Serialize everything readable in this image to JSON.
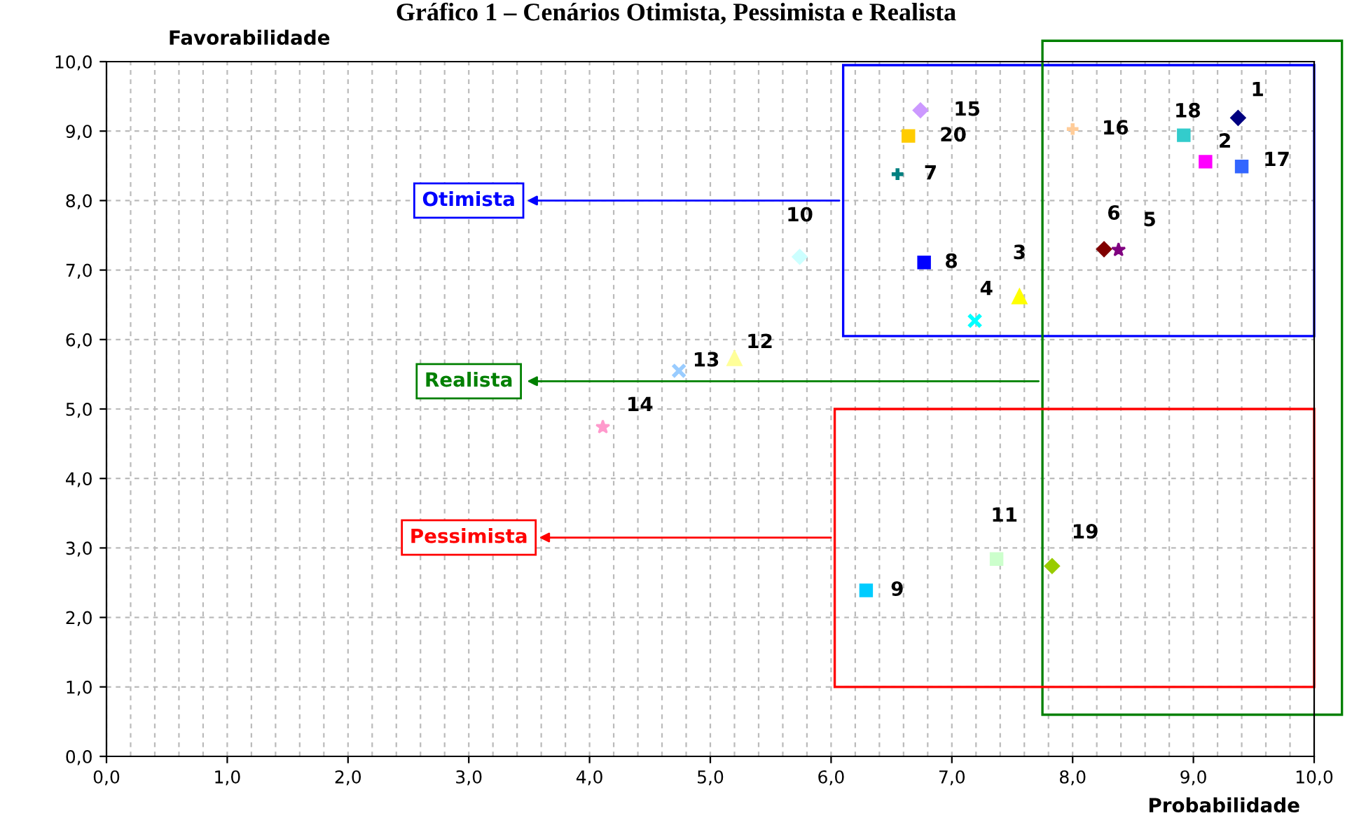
{
  "chart_data": {
    "type": "scatter",
    "title": "Gráfico 1 – Cenários Otimista, Pessimista e Realista",
    "xlabel": "Probabilidade",
    "ylabel": "Favorabilidade",
    "xlim": [
      0,
      10
    ],
    "ylim": [
      0,
      10
    ],
    "xticks": [
      {
        "value": 0,
        "label": "0,0"
      },
      {
        "value": 1,
        "label": "1,0"
      },
      {
        "value": 2,
        "label": "2,0"
      },
      {
        "value": 3,
        "label": "3,0"
      },
      {
        "value": 4,
        "label": "4,0"
      },
      {
        "value": 5,
        "label": "5,0"
      },
      {
        "value": 6,
        "label": "6,0"
      },
      {
        "value": 7,
        "label": "7,0"
      },
      {
        "value": 8,
        "label": "8,0"
      },
      {
        "value": 9,
        "label": "9,0"
      },
      {
        "value": 10,
        "label": "10,0"
      }
    ],
    "yticks": [
      {
        "value": 0,
        "label": "0,0"
      },
      {
        "value": 1,
        "label": "1,0"
      },
      {
        "value": 2,
        "label": "2,0"
      },
      {
        "value": 3,
        "label": "3,0"
      },
      {
        "value": 4,
        "label": "4,0"
      },
      {
        "value": 5,
        "label": "5,0"
      },
      {
        "value": 6,
        "label": "6,0"
      },
      {
        "value": 7,
        "label": "7,0"
      },
      {
        "value": 8,
        "label": "8,0"
      },
      {
        "value": 9,
        "label": "9,0"
      },
      {
        "value": 10,
        "label": "10,0"
      }
    ],
    "grid": true,
    "legend": false,
    "series": [
      {
        "name": "1",
        "color": "#000080",
        "marker": "diamond",
        "x": [
          9.37
        ],
        "values": [
          9.19
        ]
      },
      {
        "name": "2",
        "color": "#ff00ff",
        "marker": "square",
        "x": [
          9.1
        ],
        "values": [
          8.56
        ]
      },
      {
        "name": "3",
        "color": "#ffff00",
        "marker": "triangle",
        "x": [
          7.56
        ],
        "values": [
          6.62
        ]
      },
      {
        "name": "4",
        "color": "#00ffff",
        "marker": "cross",
        "x": [
          7.19
        ],
        "values": [
          6.27
        ]
      },
      {
        "name": "5",
        "color": "#800080",
        "marker": "star",
        "x": [
          8.38
        ],
        "values": [
          7.29
        ]
      },
      {
        "name": "6",
        "color": "#800000",
        "marker": "diamond",
        "x": [
          8.26
        ],
        "values": [
          7.3
        ]
      },
      {
        "name": "7",
        "color": "#008080",
        "marker": "plus",
        "x": [
          6.55
        ],
        "values": [
          8.38
        ]
      },
      {
        "name": "8",
        "color": "#0000ff",
        "marker": "square",
        "x": [
          6.77
        ],
        "values": [
          7.11
        ]
      },
      {
        "name": "9",
        "color": "#00ccff",
        "marker": "square",
        "x": [
          6.29
        ],
        "values": [
          2.39
        ]
      },
      {
        "name": "10",
        "color": "#ccffff",
        "marker": "diamond",
        "x": [
          5.74
        ],
        "values": [
          7.19
        ]
      },
      {
        "name": "11",
        "color": "#ccffcc",
        "marker": "square",
        "x": [
          7.37
        ],
        "values": [
          2.84
        ]
      },
      {
        "name": "12",
        "color": "#ffff99",
        "marker": "triangle",
        "x": [
          5.2
        ],
        "values": [
          5.73
        ]
      },
      {
        "name": "13",
        "color": "#99ccff",
        "marker": "cross",
        "x": [
          4.74
        ],
        "values": [
          5.55
        ]
      },
      {
        "name": "14",
        "color": "#ff99cc",
        "marker": "star",
        "x": [
          4.11
        ],
        "values": [
          4.74
        ]
      },
      {
        "name": "15",
        "color": "#cc99ff",
        "marker": "diamond",
        "x": [
          6.74
        ],
        "values": [
          9.3
        ]
      },
      {
        "name": "16",
        "color": "#ffcc99",
        "marker": "plus",
        "x": [
          8.0
        ],
        "values": [
          9.03
        ]
      },
      {
        "name": "17",
        "color": "#3366ff",
        "marker": "square",
        "x": [
          9.4
        ],
        "values": [
          8.49
        ]
      },
      {
        "name": "18",
        "color": "#33cccc",
        "marker": "square",
        "x": [
          8.92
        ],
        "values": [
          8.94
        ]
      },
      {
        "name": "19",
        "color": "#99cc00",
        "marker": "diamond",
        "x": [
          7.83
        ],
        "values": [
          2.74
        ]
      },
      {
        "name": "20",
        "color": "#ffcc00",
        "marker": "square",
        "x": [
          6.64
        ],
        "values": [
          8.93
        ]
      }
    ],
    "annotations": [
      "Otimista",
      "Realista",
      "Pessimista"
    ]
  }
}
